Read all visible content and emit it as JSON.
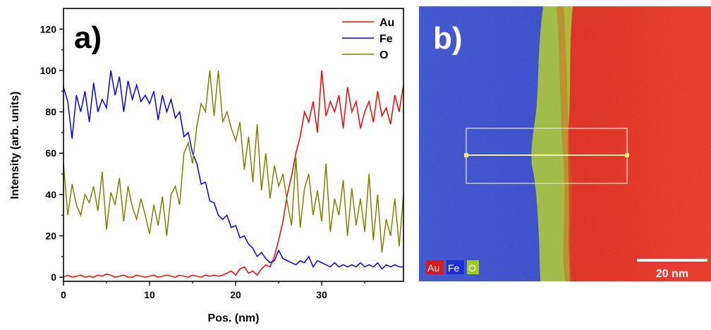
{
  "chart_data": {
    "type": "line",
    "panel_label": "a)",
    "xlabel": "Pos. (nm)",
    "ylabel": "Intensity (arb. units)",
    "xlim": [
      0,
      39.5
    ],
    "ylim": [
      -2,
      130
    ],
    "xticks": [
      0,
      10,
      20,
      30
    ],
    "yticks": [
      0,
      20,
      40,
      60,
      80,
      100,
      120
    ],
    "grid": false,
    "legend_position": "top-right",
    "series": [
      {
        "name": "Au",
        "color": "#ff0000",
        "x": [
          0,
          0.5,
          1,
          1.5,
          2,
          2.5,
          3,
          3.5,
          4,
          4.5,
          5,
          5.5,
          6,
          6.5,
          7,
          7.5,
          8,
          8.5,
          9,
          9.5,
          10,
          10.5,
          11,
          11.5,
          12,
          12.5,
          13,
          13.5,
          14,
          14.5,
          15,
          15.5,
          16,
          16.5,
          17,
          17.5,
          18,
          18.5,
          19,
          19.5,
          20,
          20.5,
          21,
          21.5,
          22,
          22.5,
          23,
          23.5,
          24,
          24.5,
          25,
          25.5,
          26,
          26.5,
          27,
          27.5,
          28,
          28.5,
          29,
          29.5,
          30,
          30.5,
          31,
          31.5,
          32,
          32.5,
          33,
          33.5,
          34,
          34.5,
          35,
          35.5,
          36,
          36.5,
          37,
          37.5,
          38,
          38.5,
          39,
          39.5
        ],
        "values": [
          0,
          1,
          0,
          0.5,
          1,
          0,
          0.5,
          0,
          1,
          0.5,
          1.5,
          1,
          0,
          0.5,
          1,
          0,
          0,
          1,
          0.5,
          0,
          0.5,
          1,
          0,
          0.5,
          1,
          0.5,
          0,
          1,
          0.5,
          0,
          1,
          0.5,
          0,
          1,
          0.5,
          1,
          0.5,
          1,
          2,
          3,
          1,
          4,
          5,
          2,
          3,
          1,
          4,
          6,
          5,
          10,
          18,
          27,
          40,
          49,
          60,
          68,
          80,
          75,
          85,
          70,
          100,
          78,
          85,
          80,
          88,
          72,
          92,
          80,
          85,
          72,
          80,
          85,
          75,
          90,
          78,
          82,
          74,
          88,
          80,
          93
        ]
      },
      {
        "name": "Fe",
        "color": "#0000ff",
        "x": [
          0,
          0.5,
          1,
          1.5,
          2,
          2.5,
          3,
          3.5,
          4,
          4.5,
          5,
          5.5,
          6,
          6.5,
          7,
          7.5,
          8,
          8.5,
          9,
          9.5,
          10,
          10.5,
          11,
          11.5,
          12,
          12.5,
          13,
          13.5,
          14,
          14.5,
          15,
          15.5,
          16,
          16.5,
          17,
          17.5,
          18,
          18.5,
          19,
          19.5,
          20,
          20.5,
          21,
          21.5,
          22,
          22.5,
          23,
          23.5,
          24,
          24.5,
          25,
          25.5,
          26,
          26.5,
          27,
          27.5,
          28,
          28.5,
          29,
          29.5,
          30,
          30.5,
          31,
          31.5,
          32,
          32.5,
          33,
          33.5,
          34,
          34.5,
          35,
          35.5,
          36,
          36.5,
          37,
          37.5,
          38,
          38.5,
          39,
          39.5
        ],
        "values": [
          92,
          85,
          67,
          88,
          80,
          90,
          75,
          94,
          80,
          86,
          82,
          100,
          88,
          97,
          80,
          95,
          86,
          93,
          85,
          88,
          84,
          90,
          76,
          88,
          80,
          86,
          77,
          80,
          68,
          70,
          60,
          55,
          45,
          46,
          37,
          36,
          30,
          28,
          30,
          24,
          25,
          19,
          20,
          16,
          14,
          10,
          12,
          9,
          7,
          8,
          13,
          9,
          8,
          7,
          6,
          8,
          7,
          10,
          5,
          8,
          7,
          6,
          5,
          7,
          5,
          6,
          5,
          6,
          5,
          7,
          5,
          6,
          5,
          7,
          4,
          6,
          5,
          6,
          5,
          5
        ]
      },
      {
        "name": "O",
        "color": "#808000",
        "x": [
          0,
          0.5,
          1,
          1.5,
          2,
          2.5,
          3,
          3.5,
          4,
          4.5,
          5,
          5.5,
          6,
          6.5,
          7,
          7.5,
          8,
          8.5,
          9,
          9.5,
          10,
          10.5,
          11,
          11.5,
          12,
          12.5,
          13,
          13.5,
          14,
          14.5,
          15,
          15.5,
          16,
          16.5,
          17,
          17.5,
          18,
          18.5,
          19,
          19.5,
          20,
          20.5,
          21,
          21.5,
          22,
          22.5,
          23,
          23.5,
          24,
          24.5,
          25,
          25.5,
          26,
          26.5,
          27,
          27.5,
          28,
          28.5,
          29,
          29.5,
          30,
          30.5,
          31,
          31.5,
          32,
          32.5,
          33,
          33.5,
          34,
          34.5,
          35,
          35.5,
          36,
          36.5,
          37,
          37.5,
          38,
          38.5,
          39,
          39.5
        ],
        "values": [
          55,
          30,
          45,
          35,
          30,
          40,
          36,
          44,
          32,
          51,
          23,
          41,
          35,
          48,
          27,
          44,
          34,
          28,
          38,
          30,
          21,
          35,
          25,
          39,
          20,
          40,
          44,
          35,
          60,
          65,
          55,
          73,
          84,
          80,
          100,
          78,
          100,
          75,
          80,
          72,
          66,
          75,
          52,
          68,
          46,
          74,
          42,
          60,
          38,
          54,
          44,
          50,
          36,
          25,
          58,
          24,
          43,
          50,
          30,
          42,
          27,
          55,
          22,
          38,
          30,
          47,
          20,
          43,
          25,
          38,
          22,
          50,
          18,
          40,
          12,
          28,
          20,
          38,
          15,
          40
        ]
      }
    ]
  },
  "map": {
    "panel_label": "b)",
    "legend": [
      {
        "label": "Au",
        "color": "#d81a1a"
      },
      {
        "label": "Fe",
        "color": "#1c30d8"
      },
      {
        "label": "O",
        "color": "#9ccc22"
      }
    ],
    "scale_bar_label": "20 nm",
    "scale_bar_nm": 20
  }
}
